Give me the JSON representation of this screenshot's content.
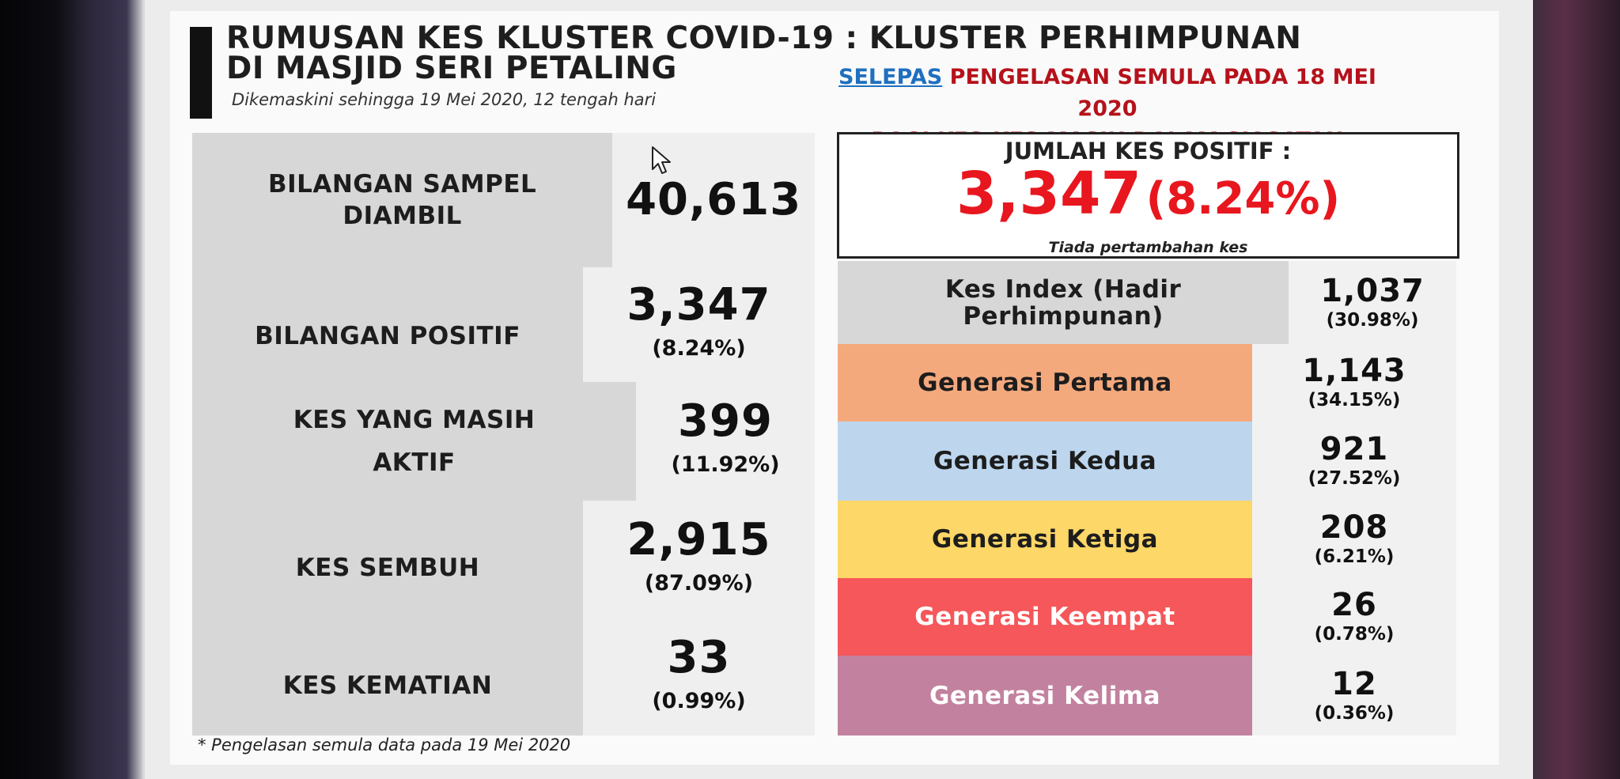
{
  "colors": {
    "title_text": "#1e1e1e",
    "accent_red": "#e8161e",
    "note_red": "#b5121b",
    "link_blue": "#1f6fbf",
    "gray_cell": "#d7d7d7",
    "gen_pertama": "#f4a97d",
    "gen_kedua": "#bdd6ee",
    "gen_ketiga": "#fdd767",
    "gen_keempat": "#f5575a",
    "gen_kelima": "#c2829f"
  },
  "header": {
    "title_line1": "RUMUSAN KES KLUSTER COVID-19 : KLUSTER PERHIMPUNAN",
    "title_line2": "DI MASJID SERI PETALING",
    "subtitle": "Dikemaskini sehingga 19 Mei 2020, 12 tengah hari",
    "note_highlight": "SELEPAS",
    "note_line1_rest": " PENGELASAN SEMULA PADA 18 MEI 2020",
    "note_line2": "BAGI KES-KES MASIH DALAM SIASATAN"
  },
  "left_table": {
    "rows": [
      {
        "label": "BILANGAN SAMPEL DIAMBIL",
        "value": "40,613",
        "pct": ""
      },
      {
        "label": "BILANGAN POSITIF",
        "value": "3,347",
        "pct": "(8.24%)"
      },
      {
        "label": "KES YANG MASIH AKTIF",
        "value": "399",
        "pct": "(11.92%)"
      },
      {
        "label": "KES SEMBUH",
        "value": "2,915",
        "pct": "(87.09%)"
      },
      {
        "label": "KES KEMATIAN",
        "value": "33",
        "pct": "(0.99%)"
      }
    ],
    "footnote": "* Pengelasan semula data pada 19 Mei 2020"
  },
  "total": {
    "label": "JUMLAH KES POSITIF :",
    "value": "3,347",
    "pct": "(8.24%)",
    "note": "Tiada pertambahan kes"
  },
  "right_table": {
    "rows": [
      {
        "label": "Kes Index (Hadir Perhimpunan)",
        "value": "1,037",
        "pct": "(30.98%)"
      },
      {
        "label": "Generasi Pertama",
        "value": "1,143",
        "pct": "(34.15%)"
      },
      {
        "label": "Generasi Kedua",
        "value": "921",
        "pct": "(27.52%)"
      },
      {
        "label": "Generasi Ketiga",
        "value": "208",
        "pct": "(6.21%)"
      },
      {
        "label": "Generasi Keempat",
        "value": "26",
        "pct": "(0.78%)"
      },
      {
        "label": "Generasi Kelima",
        "value": "12",
        "pct": "(0.36%)"
      }
    ]
  },
  "cursor_icon": "mouse-pointer-icon"
}
